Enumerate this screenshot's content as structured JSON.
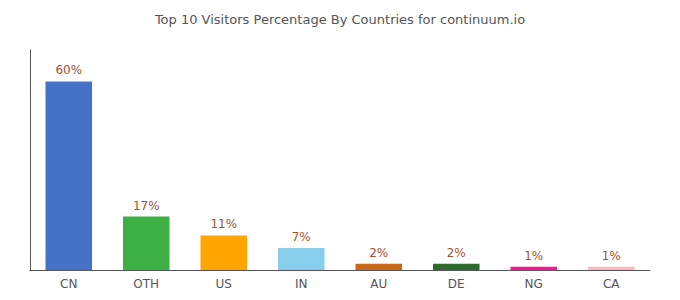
{
  "chart_data": {
    "type": "bar",
    "title": "Top 10 Visitors Percentage By Countries for continuum.io",
    "categories": [
      "CN",
      "OTH",
      "US",
      "IN",
      "AU",
      "DE",
      "NG",
      "CA"
    ],
    "values": [
      60,
      17,
      11,
      7,
      2,
      2,
      1,
      1
    ],
    "value_labels": [
      "60%",
      "17%",
      "11%",
      "7%",
      "2%",
      "2%",
      "1%",
      "1%"
    ],
    "colors": [
      "#4472C4",
      "#3CB043",
      "#FFA500",
      "#87CEEB",
      "#C8691A",
      "#2D6A2D",
      "#FF1493",
      "#FFB6C1"
    ],
    "ylim": [
      0,
      70
    ],
    "grid": false,
    "data_labels": true,
    "tick_labels": "x"
  }
}
